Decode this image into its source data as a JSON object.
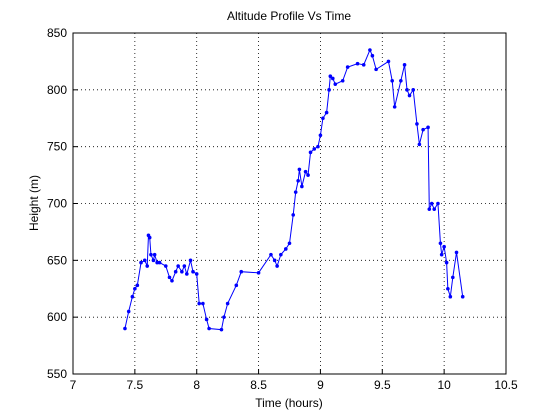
{
  "chart_data": {
    "type": "line",
    "title": "Altitude Profile Vs Time",
    "x_label": "Time (hours)",
    "y_label": "Height (m)",
    "xlim": [
      7,
      10.5
    ],
    "ylim": [
      550,
      850
    ],
    "xticks": [
      7,
      7.5,
      8,
      8.5,
      9,
      9.5,
      10,
      10.5
    ],
    "yticks": [
      550,
      600,
      650,
      700,
      750,
      800,
      850
    ],
    "grid": true,
    "series": [
      {
        "color": "#0000ff",
        "x": [
          7.42,
          7.45,
          7.48,
          7.5,
          7.52,
          7.55,
          7.58,
          7.6,
          7.61,
          7.62,
          7.63,
          7.65,
          7.66,
          7.68,
          7.7,
          7.75,
          7.78,
          7.8,
          7.83,
          7.85,
          7.88,
          7.9,
          7.92,
          7.95,
          7.97,
          8.0,
          8.02,
          8.05,
          8.08,
          8.1,
          8.2,
          8.22,
          8.25,
          8.32,
          8.36,
          8.5,
          8.6,
          8.63,
          8.65,
          8.68,
          8.72,
          8.75,
          8.78,
          8.8,
          8.82,
          8.83,
          8.85,
          8.88,
          8.9,
          8.92,
          8.95,
          8.98,
          9.0,
          9.02,
          9.05,
          9.07,
          9.08,
          9.1,
          9.12,
          9.18,
          9.22,
          9.3,
          9.35,
          9.4,
          9.42,
          9.45,
          9.55,
          9.58,
          9.6,
          9.65,
          9.68,
          9.7,
          9.72,
          9.75,
          9.78,
          9.8,
          9.83,
          9.87,
          9.88,
          9.9,
          9.92,
          9.95,
          9.97,
          9.98,
          10.0,
          10.02,
          10.03,
          10.05,
          10.07,
          10.1,
          10.15
        ],
        "values": [
          590,
          605,
          618,
          625,
          628,
          648,
          650,
          645,
          672,
          670,
          655,
          650,
          655,
          648,
          648,
          645,
          635,
          632,
          640,
          645,
          640,
          645,
          638,
          650,
          640,
          638,
          612,
          612,
          598,
          590,
          589,
          600,
          612,
          628,
          640,
          639,
          655,
          650,
          645,
          655,
          660,
          665,
          690,
          710,
          720,
          730,
          715,
          728,
          725,
          745,
          748,
          750,
          760,
          775,
          780,
          800,
          812,
          810,
          805,
          808,
          820,
          823,
          822,
          835,
          830,
          818,
          825,
          808,
          785,
          808,
          822,
          800,
          795,
          800,
          770,
          752,
          765,
          767,
          695,
          700,
          695,
          700,
          665,
          655,
          662,
          648,
          625,
          618,
          635,
          657,
          618
        ]
      }
    ]
  }
}
